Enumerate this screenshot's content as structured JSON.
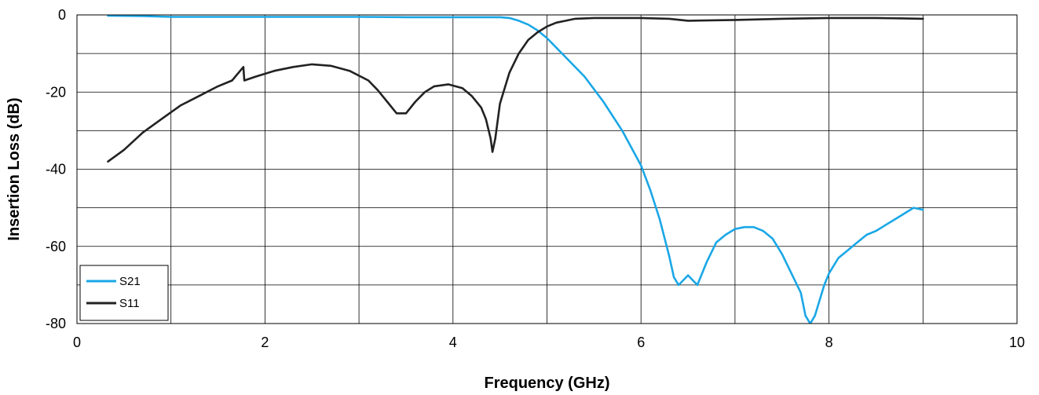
{
  "chart_data": {
    "type": "line",
    "title": "",
    "xlabel": "Frequency (GHz)",
    "ylabel": "Insertion Loss (dB)",
    "xlim": [
      0,
      10
    ],
    "ylim": [
      -80,
      0
    ],
    "x_ticks": [
      0,
      2,
      4,
      6,
      8,
      10
    ],
    "x_tick_labels": [
      "0",
      "2",
      "4",
      "6",
      "8",
      "10"
    ],
    "y_ticks": [
      0,
      -20,
      -40,
      -60,
      -80
    ],
    "y_tick_labels": [
      "0",
      "-20",
      "-40",
      "-60",
      "-80"
    ],
    "x_grid_step": 1,
    "y_grid_step": 10,
    "grid": true,
    "legend_position": "bottom-left",
    "colors": {
      "S21": "#1aa7e6",
      "S11": "#222222",
      "grid": "#000000"
    },
    "series": [
      {
        "name": "S21",
        "x": [
          0.33,
          0.7,
          1.0,
          1.5,
          2.0,
          2.5,
          3.0,
          3.5,
          4.0,
          4.5,
          4.6,
          4.7,
          4.8,
          4.9,
          5.0,
          5.1,
          5.2,
          5.4,
          5.6,
          5.8,
          6.0,
          6.1,
          6.2,
          6.3,
          6.35,
          6.4,
          6.5,
          6.6,
          6.7,
          6.8,
          6.9,
          7.0,
          7.1,
          7.2,
          7.3,
          7.4,
          7.5,
          7.6,
          7.7,
          7.75,
          7.8,
          7.85,
          7.9,
          7.95,
          8.0,
          8.1,
          8.2,
          8.3,
          8.4,
          8.5,
          8.6,
          8.7,
          8.8,
          8.9,
          9.0
        ],
        "y": [
          -0.2,
          -0.3,
          -0.5,
          -0.5,
          -0.5,
          -0.5,
          -0.5,
          -0.6,
          -0.6,
          -0.6,
          -0.8,
          -1.5,
          -2.5,
          -4.0,
          -6.0,
          -8.5,
          -11.0,
          -16.0,
          -22.5,
          -30.0,
          -39.0,
          -45.5,
          -53.0,
          -62.5,
          -68.0,
          -70.0,
          -67.5,
          -70.0,
          -64.0,
          -59.0,
          -57.0,
          -55.5,
          -55.0,
          -55.0,
          -56.0,
          -58.0,
          -62.0,
          -67.0,
          -72.0,
          -78.0,
          -80.0,
          -78.0,
          -74.0,
          -70.0,
          -67.0,
          -63.0,
          -61.0,
          -59.0,
          -57.0,
          -56.0,
          -54.5,
          -53.0,
          -51.5,
          -50.0,
          -50.5
        ]
      },
      {
        "name": "S11",
        "x": [
          0.33,
          0.5,
          0.7,
          0.9,
          1.1,
          1.3,
          1.5,
          1.65,
          1.77,
          1.78,
          1.9,
          2.1,
          2.3,
          2.5,
          2.7,
          2.9,
          3.1,
          3.2,
          3.3,
          3.4,
          3.5,
          3.6,
          3.7,
          3.8,
          3.95,
          4.1,
          4.2,
          4.3,
          4.35,
          4.4,
          4.42,
          4.45,
          4.5,
          4.6,
          4.7,
          4.8,
          4.9,
          5.0,
          5.1,
          5.2,
          5.3,
          5.5,
          6.0,
          6.3,
          6.5,
          7.0,
          7.5,
          8.0,
          8.5,
          9.0
        ],
        "y": [
          -38.0,
          -35.0,
          -30.5,
          -27.0,
          -23.5,
          -21.0,
          -18.5,
          -17.0,
          -13.5,
          -17.0,
          -16.0,
          -14.5,
          -13.5,
          -12.8,
          -13.2,
          -14.5,
          -17.0,
          -19.5,
          -22.5,
          -25.5,
          -25.5,
          -22.5,
          -20.0,
          -18.5,
          -18.0,
          -19.0,
          -21.0,
          -24.0,
          -27.0,
          -32.0,
          -35.5,
          -32.0,
          -23.0,
          -15.0,
          -10.0,
          -6.5,
          -4.5,
          -3.0,
          -2.0,
          -1.5,
          -1.0,
          -0.8,
          -0.8,
          -1.0,
          -1.5,
          -1.3,
          -1.0,
          -0.8,
          -0.8,
          -1.0
        ]
      }
    ]
  }
}
